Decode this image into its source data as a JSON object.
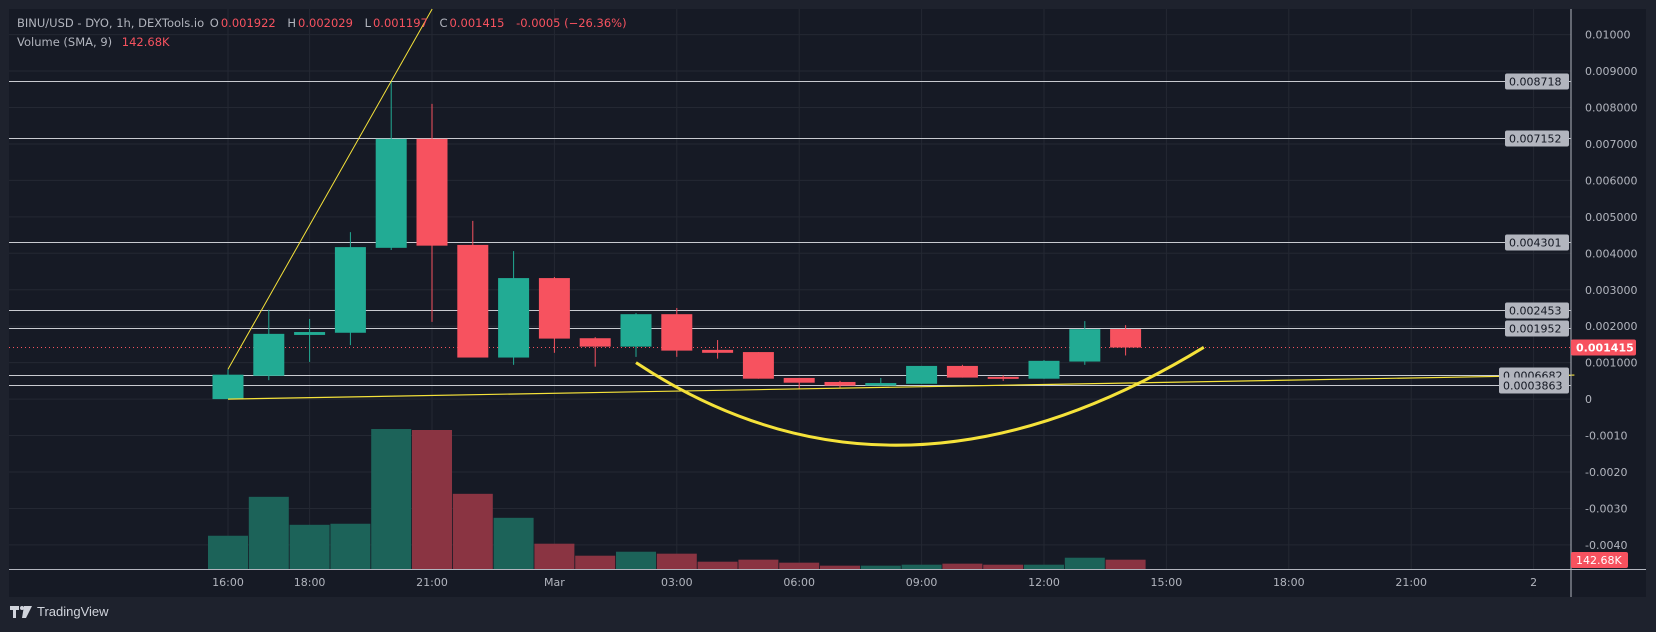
{
  "header": {
    "symbol": "BINU/USD - DYO, 1h, DEXTools.io",
    "o_label": "O",
    "o_value": "0.001922",
    "h_label": "H",
    "h_value": "0.002029",
    "l_label": "L",
    "l_value": "0.001197",
    "c_label": "C",
    "c_value": "0.001415",
    "change": "-0.0005 (−26.36%)",
    "volume_label": "Volume (SMA, 9)",
    "volume_value": "142.68K"
  },
  "footer": {
    "brand": "TradingView",
    "logo_icon": "tradingview-logo-icon"
  },
  "colors": {
    "background": "#161a25",
    "frame": "#1e222d",
    "grid": "#242833",
    "up": "#22ab94",
    "down": "#f7525f",
    "volume_up": "#1c6359",
    "volume_down": "#8a3442",
    "level_line": "#c8cad0",
    "label_bg": "#b2b5be",
    "drawing": "#f5e23a",
    "text": "#b2b5be"
  },
  "chart_data": {
    "type": "candlestick",
    "price_ticks": [
      "0.01000",
      "0.009000",
      "0.008000",
      "0.007000",
      "0.006000",
      "0.005000",
      "0.004000",
      "0.003000",
      "0.002000",
      "0.001000",
      "0",
      "-0.0010",
      "-0.0020",
      "-0.0030",
      "-0.0040"
    ],
    "time_ticks": [
      "16:00",
      "18:00",
      "21:00",
      "Mar",
      "03:00",
      "06:00",
      "09:00",
      "12:00",
      "15:00",
      "18:00",
      "21:00",
      "2"
    ],
    "candles": [
      {
        "t": "16:00",
        "o": 0.0,
        "h": 0.00082,
        "l": 0.0,
        "c": 0.00067,
        "v": 510
      },
      {
        "t": "17:00",
        "o": 0.00064,
        "h": 0.00245,
        "l": 0.00052,
        "c": 0.00179,
        "v": 1107
      },
      {
        "t": "18:00",
        "o": 0.00176,
        "h": 0.0022,
        "l": 0.00102,
        "c": 0.00184,
        "v": 678
      },
      {
        "t": "19:00",
        "o": 0.00182,
        "h": 0.00458,
        "l": 0.00148,
        "c": 0.00417,
        "v": 694
      },
      {
        "t": "20:00",
        "o": 0.00415,
        "h": 0.00872,
        "l": 0.00409,
        "c": 0.00714,
        "v": 2147
      },
      {
        "t": "21:00",
        "o": 0.00714,
        "h": 0.0081,
        "l": 0.00212,
        "c": 0.00421,
        "v": 2132
      },
      {
        "t": "22:00",
        "o": 0.00423,
        "h": 0.00489,
        "l": 0.00114,
        "c": 0.00114,
        "v": 1153
      },
      {
        "t": "23:00",
        "o": 0.00114,
        "h": 0.00406,
        "l": 0.00094,
        "c": 0.00332,
        "v": 785
      },
      {
        "t": "Mar 1 00:00",
        "o": 0.00332,
        "h": 0.00335,
        "l": 0.00127,
        "c": 0.00166,
        "v": 388
      },
      {
        "t": "Mar 1 01:00",
        "o": 0.00167,
        "h": 0.0017,
        "l": 0.00089,
        "c": 0.00144,
        "v": 204
      },
      {
        "t": "Mar 1 02:00",
        "o": 0.00144,
        "h": 0.00236,
        "l": 0.00116,
        "c": 0.00233,
        "v": 265
      },
      {
        "t": "Mar 1 03:00",
        "o": 0.00233,
        "h": 0.0025,
        "l": 0.00116,
        "c": 0.00133,
        "v": 235
      },
      {
        "t": "Mar 1 04:00",
        "o": 0.00135,
        "h": 0.00162,
        "l": 0.00111,
        "c": 0.00127,
        "v": 112
      },
      {
        "t": "Mar 1 05:00",
        "o": 0.00129,
        "h": 0.00129,
        "l": 0.00056,
        "c": 0.00056,
        "v": 143
      },
      {
        "t": "Mar 1 06:00",
        "o": 0.00058,
        "h": 0.00058,
        "l": 0.00029,
        "c": 0.00045,
        "v": 97
      },
      {
        "t": "Mar 1 07:00",
        "o": 0.00047,
        "h": 0.0005,
        "l": 0.00031,
        "c": 0.00037,
        "v": 51
      },
      {
        "t": "Mar 1 08:00",
        "o": 0.00037,
        "h": 0.00058,
        "l": 0.00037,
        "c": 0.00044,
        "v": 51
      },
      {
        "t": "Mar 1 09:00",
        "o": 0.00042,
        "h": 0.00091,
        "l": 0.00042,
        "c": 0.00091,
        "v": 66
      },
      {
        "t": "Mar 1 10:00",
        "o": 0.00091,
        "h": 0.00094,
        "l": 0.00059,
        "c": 0.00059,
        "v": 82
      },
      {
        "t": "Mar 1 11:00",
        "o": 0.00061,
        "h": 0.00065,
        "l": 0.0005,
        "c": 0.00056,
        "v": 66
      },
      {
        "t": "Mar 1 12:00",
        "o": 0.00056,
        "h": 0.00107,
        "l": 0.00056,
        "c": 0.00105,
        "v": 66
      },
      {
        "t": "Mar 1 13:00",
        "o": 0.00103,
        "h": 0.00214,
        "l": 0.00094,
        "c": 0.00192,
        "v": 173
      },
      {
        "t": "Mar 1 14:00",
        "o": 0.001922,
        "h": 0.002029,
        "l": 0.001197,
        "c": 0.001415,
        "v": 142.68
      }
    ],
    "volume_unit": "K",
    "last_price": "0.001415",
    "last_volume": "142.68K",
    "price_levels": [
      "0.008718",
      "0.007152",
      "0.004301",
      "0.002453",
      "0.001952",
      "0.0006682",
      "0.0003863"
    ],
    "drawings": {
      "trend_up": [
        {
          "t": "16:00",
          "p": 0.00082
        },
        {
          "t": "20:00",
          "p": 0.00872
        }
      ],
      "trend_base": [
        {
          "t": "16:00",
          "p": 0.0
        },
        {
          "t": "Mar 2 01:00",
          "p": 0.00066
        }
      ],
      "arc": [
        {
          "t": "Mar 1 02:00",
          "p": 0.001
        },
        {
          "t": "Mar 1 08:40",
          "p": -0.00126
        },
        {
          "t": "Mar 1 15:55",
          "p": 0.00142
        }
      ]
    }
  }
}
